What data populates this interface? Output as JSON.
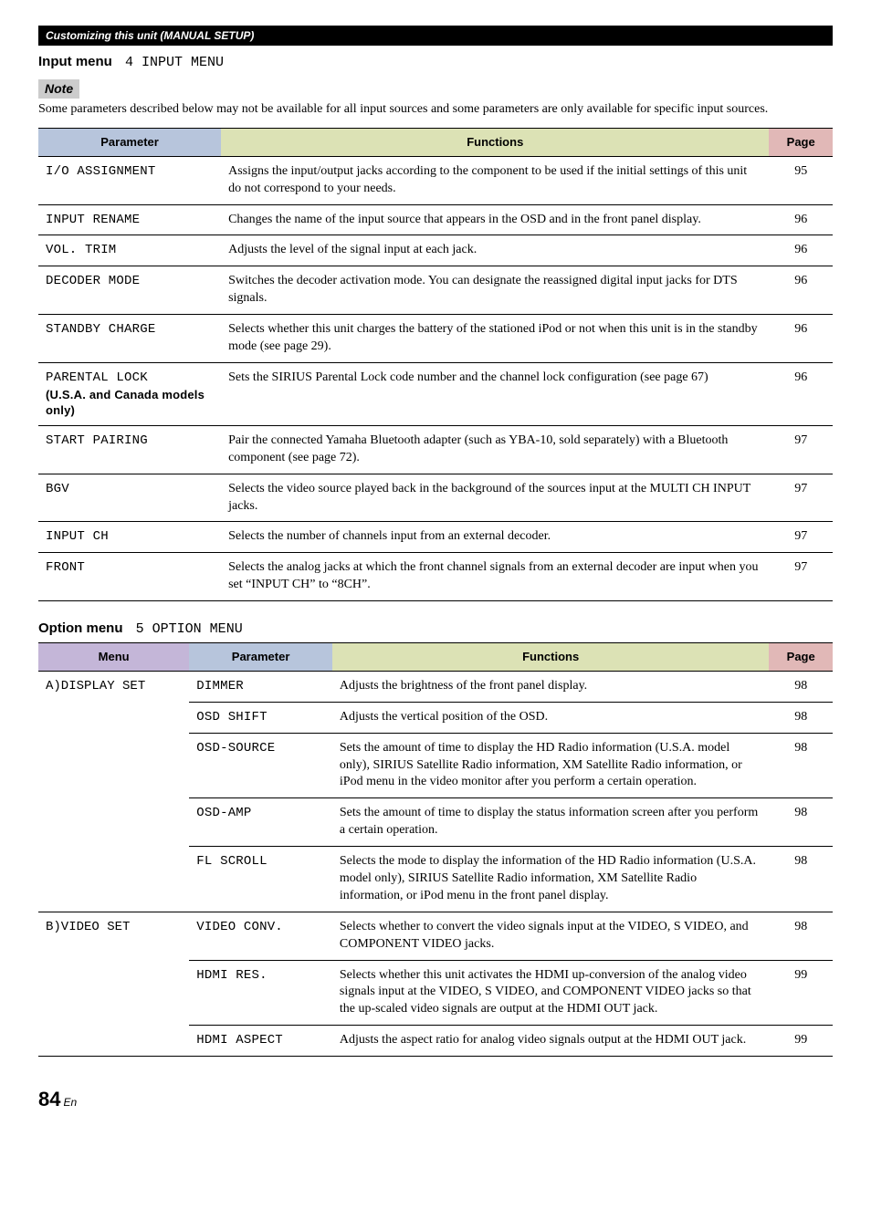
{
  "header_bar": "Customizing this unit (MANUAL SETUP)",
  "input_menu": {
    "title": "Input menu",
    "path": "4 INPUT MENU",
    "note_label": "Note",
    "note_text": "Some parameters described below may not be available for all input sources and some parameters are only available for specific input sources.",
    "headers": {
      "param": "Parameter",
      "func": "Functions",
      "page": "Page"
    },
    "rows": [
      {
        "param": "I/O ASSIGNMENT",
        "func": "Assigns the input/output jacks according to the component to be used if the initial settings of this unit do not correspond to your needs.",
        "page": "95"
      },
      {
        "param": "INPUT RENAME",
        "func": "Changes the name of the input source that appears in the OSD and in the front panel display.",
        "page": "96"
      },
      {
        "param": "VOL. TRIM",
        "func": "Adjusts the level of the signal input at each jack.",
        "page": "96"
      },
      {
        "param": "DECODER MODE",
        "func": "Switches the decoder activation mode. You can designate the reassigned digital input jacks for DTS signals.",
        "page": "96"
      },
      {
        "param": "STANDBY CHARGE",
        "func": "Selects whether this unit charges the battery of the stationed iPod or not when this unit is in the standby mode (see page 29).",
        "page": "96"
      },
      {
        "param": "PARENTAL LOCK",
        "param_sub": "(U.S.A. and Canada models only)",
        "func": "Sets the SIRIUS Parental Lock code number and the channel lock configuration (see page 67)",
        "page": "96"
      },
      {
        "param": "START PAIRING",
        "func": "Pair the connected Yamaha Bluetooth adapter (such as YBA-10, sold separately) with a Bluetooth component (see page 72).",
        "page": "97"
      },
      {
        "param": "BGV",
        "func": "Selects the video source played back in the background of the sources input at the MULTI CH INPUT jacks.",
        "page": "97"
      },
      {
        "param": "INPUT CH",
        "func": "Selects the number of channels input from an external decoder.",
        "page": "97"
      },
      {
        "param": "FRONT",
        "func": "Selects the analog jacks at which the front channel signals from an external decoder are input when you set “INPUT CH” to “8CH”.",
        "page": "97"
      }
    ]
  },
  "option_menu": {
    "title": "Option menu",
    "path": "5 OPTION MENU",
    "headers": {
      "menu": "Menu",
      "param": "Parameter",
      "func": "Functions",
      "page": "Page"
    },
    "groups": [
      {
        "menu": "A)DISPLAY SET",
        "rows": [
          {
            "param": "DIMMER",
            "func": "Adjusts the brightness of the front panel display.",
            "page": "98"
          },
          {
            "param": "OSD SHIFT",
            "func": "Adjusts the vertical position of the OSD.",
            "page": "98"
          },
          {
            "param": "OSD-SOURCE",
            "func": "Sets the amount of time to display the HD Radio information (U.S.A. model only), SIRIUS Satellite Radio information, XM Satellite Radio information, or iPod menu in the video monitor after you perform a certain operation.",
            "page": "98"
          },
          {
            "param": "OSD-AMP",
            "func": "Sets the amount of time to display the status information screen after you perform a certain operation.",
            "page": "98"
          },
          {
            "param": "FL SCROLL",
            "func": "Selects the mode to display the information of the HD Radio information (U.S.A. model only), SIRIUS Satellite Radio information, XM Satellite Radio information, or iPod menu in the front panel display.",
            "page": "98"
          }
        ]
      },
      {
        "menu": "B)VIDEO SET",
        "rows": [
          {
            "param": "VIDEO CONV.",
            "func": "Selects whether to convert the video signals input at the VIDEO, S VIDEO, and COMPONENT VIDEO jacks.",
            "page": "98"
          },
          {
            "param": "HDMI RES.",
            "func": "Selects whether this unit activates the HDMI up-conversion of the analog video signals input at the VIDEO, S VIDEO, and COMPONENT VIDEO jacks so that the up-scaled video signals are output at the HDMI OUT jack.",
            "page": "99"
          },
          {
            "param": "HDMI ASPECT",
            "func": "Adjusts the aspect ratio for analog video signals output at the HDMI OUT jack.",
            "page": "99"
          }
        ]
      }
    ]
  },
  "col_widths": {
    "t1_param": "23%",
    "t1_func": "69%",
    "t1_page": "8%",
    "t2_menu": "19%",
    "t2_param": "18%",
    "t2_func": "55%",
    "t2_page": "8%"
  },
  "footer": {
    "page": "84",
    "sub": "En"
  }
}
